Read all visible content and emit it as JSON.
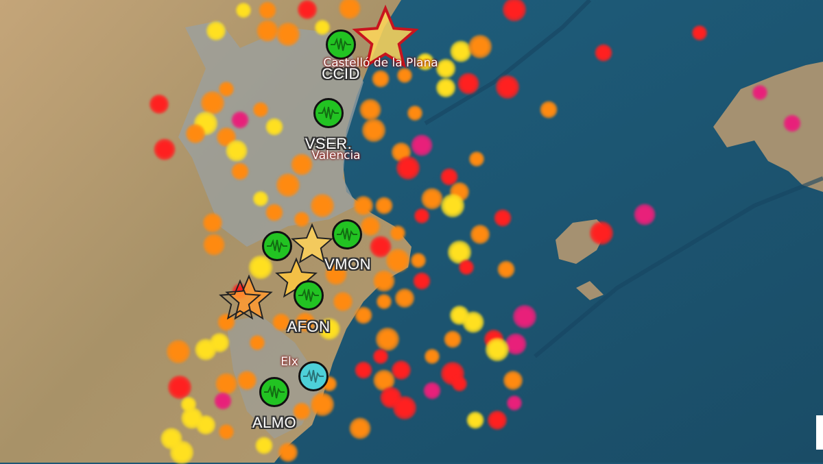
{
  "map": {
    "colors": {
      "ocean": "#1d5673",
      "land": "#b89b6e",
      "urban": "#9ea3a6",
      "quake_yellow": "#ffe020",
      "quake_orange": "#ff8a10",
      "quake_red": "#ff2020",
      "quake_magenta": "#e8207a",
      "station_active": "#22c322",
      "station_alt": "#4dd0d8"
    },
    "cities": [
      {
        "name": "Castelló de la Plana"
      },
      {
        "name": "Valencia"
      },
      {
        "name": "Elx"
      }
    ],
    "stations": [
      {
        "code": "CCID",
        "status": "active"
      },
      {
        "code": "VSER.",
        "status": "active"
      },
      {
        "code": "VMON",
        "status": "active"
      },
      {
        "code": "",
        "status": "active"
      },
      {
        "code": "AFON",
        "status": "active"
      },
      {
        "code": "",
        "status": "alternate"
      },
      {
        "code": "ALMO",
        "status": "active"
      }
    ]
  }
}
